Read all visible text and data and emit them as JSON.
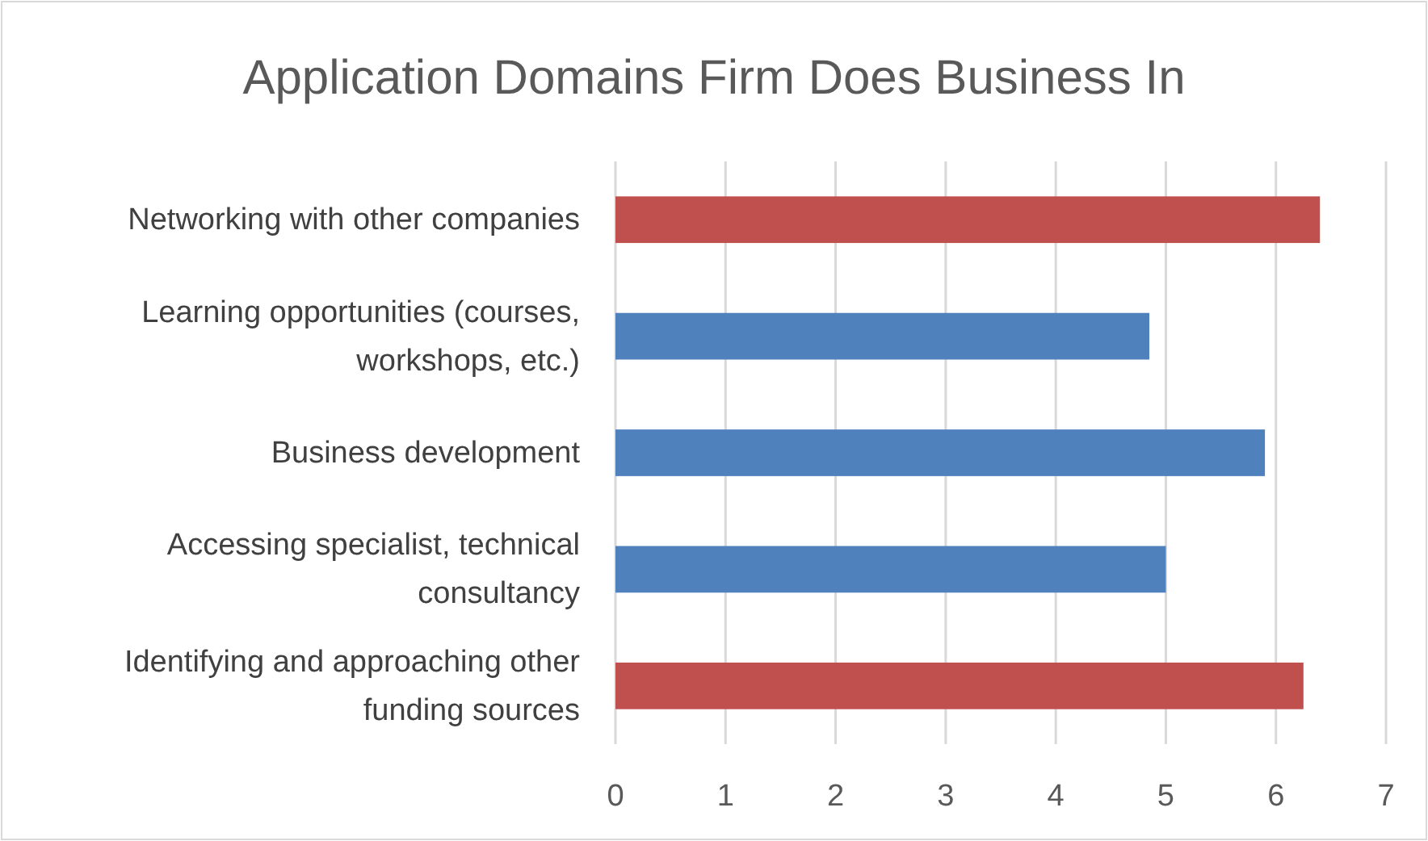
{
  "chart_data": {
    "type": "bar",
    "orientation": "horizontal",
    "title": "Application Domains Firm Does Business In",
    "categories": [
      "Networking with other companies",
      "Learning opportunities (courses, workshops, etc.)",
      "Business development",
      "Accessing specialist, technical consultancy",
      "Identifying and approaching other funding sources"
    ],
    "values": [
      6.4,
      4.85,
      5.9,
      5.0,
      6.25
    ],
    "colors": [
      "#c0504d",
      "#4f81bd",
      "#4f81bd",
      "#4f81bd",
      "#c0504d"
    ],
    "xlim": [
      0,
      7
    ],
    "xticks": [
      0,
      1,
      2,
      3,
      4,
      5,
      6,
      7
    ],
    "grid": "x"
  }
}
